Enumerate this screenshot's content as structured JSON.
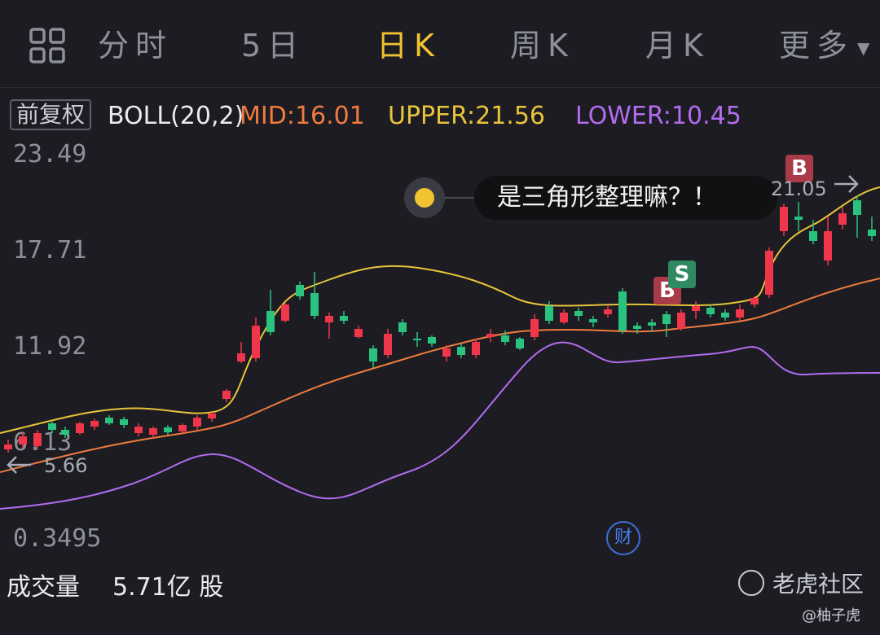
{
  "tabs": {
    "intraday": "分时",
    "five_day": "5日",
    "daily_k": "日K",
    "weekly_k": "周K",
    "monthly_k": "月K",
    "more": "更多"
  },
  "indicator": {
    "adjust": "前复权",
    "name": "BOLL(20,2)",
    "mid": "MID:16.01",
    "upper": "UPPER:21.56",
    "lower": "LOWER:10.45"
  },
  "y_axis": [
    "23.49",
    "17.71",
    "11.92",
    "6.13",
    "0.3495"
  ],
  "annotations": {
    "comment": "是三角形整理嘛？！",
    "high_price": "21.05",
    "low_price": "5.66",
    "buy_marker": "B",
    "sell_marker": "S",
    "earnings_icon": "财"
  },
  "volume": {
    "label": "成交量",
    "value": "5.71亿 股"
  },
  "watermark": {
    "brand": "老虎社区",
    "author": "@柚子虎"
  },
  "colors": {
    "background": "#1c1c22",
    "active_tab": "#f1c232",
    "up": "#f0364a",
    "down": "#29c27f",
    "mid": "#f07b3e",
    "upper": "#e8c33b",
    "lower": "#b26cf0"
  }
}
